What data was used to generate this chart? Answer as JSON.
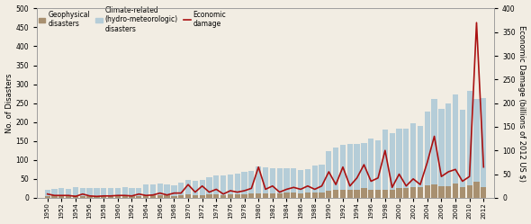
{
  "years": [
    1950,
    1951,
    1952,
    1953,
    1954,
    1955,
    1956,
    1957,
    1958,
    1959,
    1960,
    1961,
    1962,
    1963,
    1964,
    1965,
    1966,
    1967,
    1968,
    1969,
    1970,
    1971,
    1972,
    1973,
    1974,
    1975,
    1976,
    1977,
    1978,
    1979,
    1980,
    1981,
    1982,
    1983,
    1984,
    1985,
    1986,
    1987,
    1988,
    1989,
    1990,
    1991,
    1992,
    1993,
    1994,
    1995,
    1996,
    1997,
    1998,
    1999,
    2000,
    2001,
    2002,
    2003,
    2004,
    2005,
    2006,
    2007,
    2008,
    2009,
    2010,
    2011,
    2012
  ],
  "geo": [
    5,
    7,
    5,
    5,
    6,
    5,
    5,
    5,
    5,
    5,
    5,
    6,
    5,
    5,
    7,
    7,
    8,
    7,
    5,
    7,
    10,
    8,
    8,
    10,
    10,
    8,
    10,
    10,
    10,
    12,
    12,
    12,
    12,
    12,
    13,
    14,
    12,
    13,
    15,
    15,
    18,
    20,
    22,
    20,
    20,
    25,
    22,
    22,
    22,
    22,
    25,
    25,
    28,
    28,
    32,
    35,
    30,
    30,
    38,
    28,
    32,
    42,
    28
  ],
  "climate": [
    15,
    17,
    20,
    18,
    22,
    22,
    22,
    20,
    22,
    22,
    22,
    22,
    22,
    22,
    28,
    28,
    30,
    28,
    28,
    32,
    38,
    38,
    40,
    45,
    48,
    52,
    52,
    55,
    58,
    60,
    70,
    68,
    65,
    65,
    65,
    65,
    62,
    62,
    70,
    72,
    105,
    112,
    118,
    122,
    122,
    120,
    135,
    130,
    158,
    148,
    158,
    158,
    168,
    162,
    195,
    225,
    205,
    220,
    235,
    205,
    250,
    220,
    235
  ],
  "economic": [
    8,
    5,
    5,
    5,
    3,
    8,
    4,
    3,
    4,
    4,
    5,
    5,
    4,
    8,
    5,
    6,
    10,
    6,
    10,
    10,
    28,
    12,
    25,
    12,
    18,
    8,
    15,
    12,
    15,
    20,
    65,
    18,
    25,
    12,
    18,
    22,
    18,
    25,
    18,
    25,
    55,
    28,
    65,
    25,
    42,
    70,
    35,
    42,
    100,
    22,
    50,
    25,
    40,
    28,
    75,
    130,
    45,
    55,
    60,
    35,
    45,
    370,
    65
  ],
  "geo_color": "#a89070",
  "climate_color": "#b5cdd8",
  "econ_color": "#aa1111",
  "ylim_left": [
    0,
    500
  ],
  "ylim_right": [
    0,
    400
  ],
  "yticks_left": [
    0,
    50,
    100,
    150,
    200,
    250,
    300,
    350,
    400,
    450,
    500
  ],
  "yticks_right": [
    0,
    50,
    100,
    150,
    200,
    250,
    300,
    350,
    400
  ],
  "ylabel_left": "No. of Disasters",
  "ylabel_right": "Economic Damage (billions of 2012 US $)",
  "xtick_years": [
    1950,
    1952,
    1954,
    1956,
    1958,
    1960,
    1962,
    1964,
    1966,
    1968,
    1970,
    1972,
    1974,
    1976,
    1978,
    1980,
    1982,
    1984,
    1986,
    1988,
    1990,
    1992,
    1994,
    1996,
    1998,
    2000,
    2002,
    2004,
    2006,
    2008,
    2010,
    2012
  ],
  "legend_geo": "Geophysical\ndisasters",
  "legend_climate": "Climate-related\n(hydro-meteorologic)\ndisasters",
  "legend_econ": "Economic\ndamage",
  "bg_color": "#f2ede3",
  "figsize": [
    5.9,
    2.49
  ],
  "dpi": 100
}
